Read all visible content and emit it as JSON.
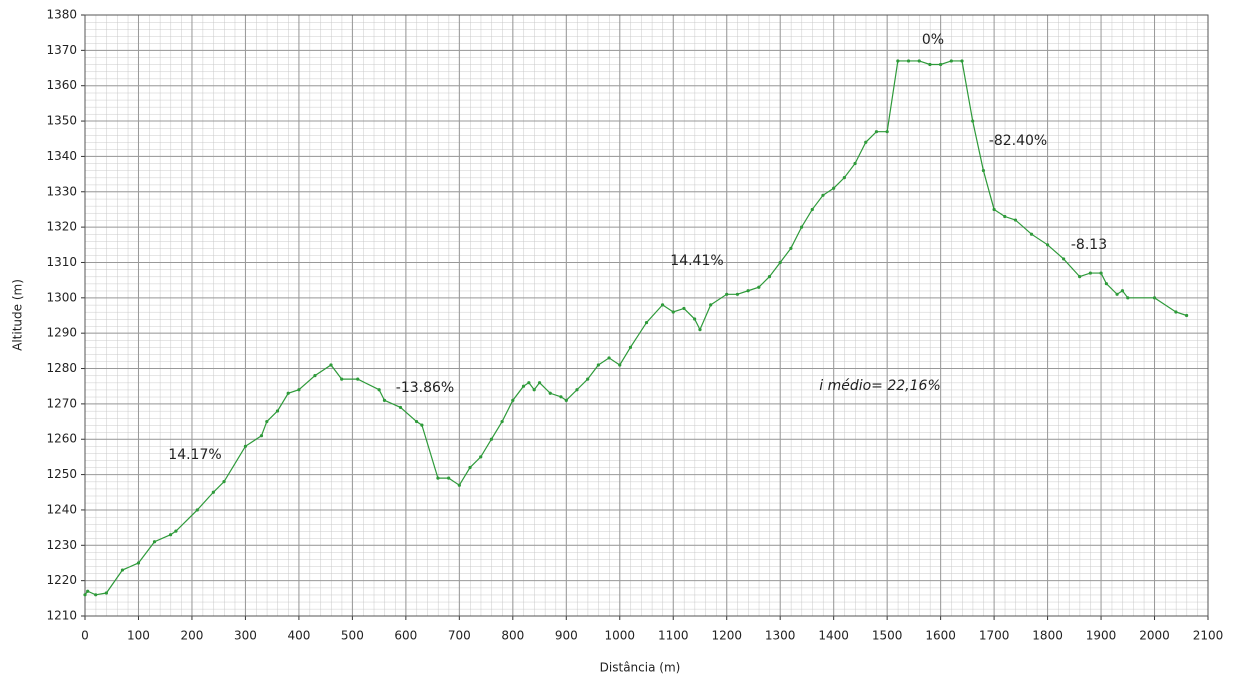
{
  "chart_data": {
    "type": "line",
    "x_label": "Distância (m)",
    "y_label": "Altitude (m)",
    "annotations": [
      "14.17%",
      "-13.86%",
      "14.41%",
      "0%",
      "-82.40%",
      "-8.13",
      "i médio= 22,16%"
    ],
    "xlim": [
      0,
      2100
    ],
    "xticks": [
      0,
      100,
      200,
      300,
      400,
      500,
      600,
      700,
      800,
      900,
      1000,
      1100,
      1200,
      1300,
      1400,
      1500,
      1600,
      1700,
      1800,
      1900,
      2000,
      2100
    ],
    "ylim": [
      1210,
      1380
    ],
    "yticks": [
      1210,
      1220,
      1230,
      1240,
      1250,
      1260,
      1270,
      1280,
      1290,
      1300,
      1310,
      1320,
      1330,
      1340,
      1350,
      1360,
      1370,
      1380
    ],
    "grid": true,
    "series": [
      {
        "color": "#2e9a3a",
        "x": [
          0,
          5,
          20,
          40,
          70,
          100,
          130,
          160,
          170,
          210,
          240,
          260,
          300,
          330,
          340,
          360,
          380,
          400,
          430,
          460,
          480,
          510,
          550,
          560,
          590,
          620,
          630,
          660,
          680,
          700,
          720,
          740,
          760,
          780,
          800,
          820,
          830,
          840,
          850,
          870,
          890,
          900,
          920,
          940,
          960,
          980,
          1000,
          1020,
          1050,
          1080,
          1100,
          1120,
          1140,
          1150,
          1170,
          1200,
          1220,
          1240,
          1260,
          1280,
          1300,
          1320,
          1340,
          1360,
          1380,
          1400,
          1420,
          1440,
          1460,
          1480,
          1500,
          1520,
          1540,
          1560,
          1580,
          1600,
          1620,
          1640,
          1660,
          1680,
          1700,
          1720,
          1740,
          1770,
          1800,
          1830,
          1860,
          1880,
          1900,
          1910,
          1930,
          1940,
          1950,
          2000,
          2040,
          2060
        ],
        "values": [
          1216,
          1217,
          1216,
          1216.5,
          1223,
          1225,
          1231,
          1233,
          1234,
          1240,
          1245,
          1248,
          1258,
          1261,
          1265,
          1268,
          1273,
          1274,
          1278,
          1281,
          1277,
          1277,
          1274,
          1271,
          1269,
          1265,
          1264,
          1249,
          1249,
          1247,
          1252,
          1255,
          1260,
          1265,
          1271,
          1275,
          1276,
          1274,
          1276,
          1273,
          1272,
          1271,
          1274,
          1277,
          1281,
          1283,
          1281,
          1286,
          1293,
          1298,
          1296,
          1297,
          1294,
          1291,
          1298,
          1301,
          1301,
          1302,
          1303,
          1306,
          1310,
          1314,
          1320,
          1325,
          1329,
          1331,
          1334,
          1338,
          1344,
          1347,
          1347,
          1367,
          1367,
          1367,
          1366,
          1366,
          1367,
          1367,
          1350,
          1336,
          1325,
          1323,
          1322,
          1318,
          1315,
          1311,
          1306,
          1307,
          1307,
          1304,
          1301,
          1302,
          1300,
          1300,
          1296,
          1295
        ]
      }
    ]
  }
}
